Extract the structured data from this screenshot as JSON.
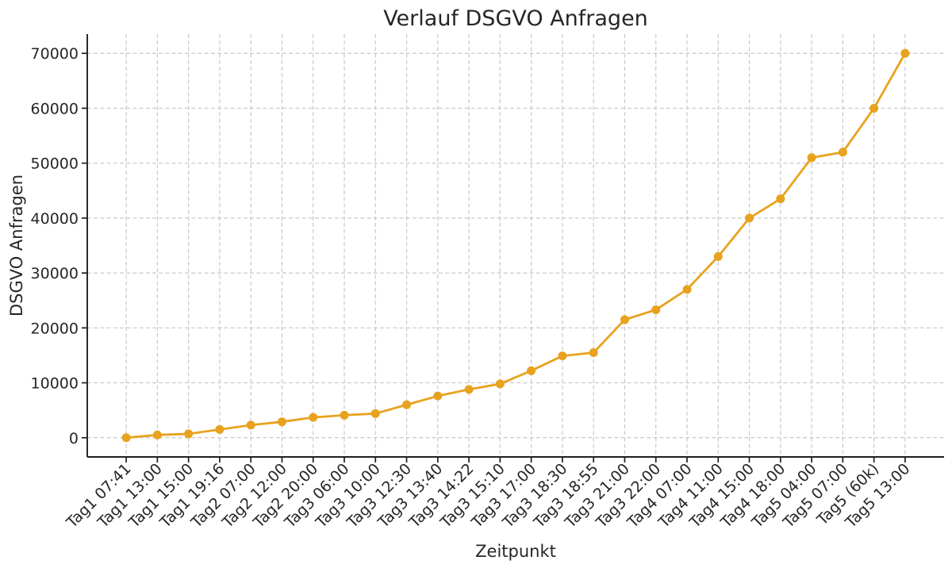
{
  "chart_data": {
    "type": "line",
    "title": "Verlauf DSGVO Anfragen",
    "xlabel": "Zeitpunkt",
    "ylabel": "DSGVO Anfragen",
    "categories": [
      "Tag1 07:41",
      "Tag1 13:00",
      "Tag1 15:00",
      "Tag1 19:16",
      "Tag2 07:00",
      "Tag2 12:00",
      "Tag2 20:00",
      "Tag3 06:00",
      "Tag3 10:00",
      "Tag3 12:30",
      "Tag3 13:40",
      "Tag3 14:22",
      "Tag3 15:10",
      "Tag3 17:00",
      "Tag3 18:30",
      "Tag3 18:55",
      "Tag3 21:00",
      "Tag3 22:00",
      "Tag4 07:00",
      "Tag4 11:00",
      "Tag4 15:00",
      "Tag4 18:00",
      "Tag5 04:00",
      "Tag5 07:00",
      "Tag5 (60k)",
      "Tag5 13:00"
    ],
    "series": [
      {
        "name": "DSGVO Anfragen",
        "values": [
          0,
          500,
          700,
          1500,
          2300,
          2900,
          3700,
          4100,
          4400,
          6000,
          7600,
          8800,
          9800,
          12200,
          14900,
          15500,
          21500,
          23300,
          27000,
          33000,
          40000,
          43500,
          51000,
          52000,
          60000,
          70000
        ]
      }
    ],
    "yticks": [
      0,
      10000,
      20000,
      30000,
      40000,
      50000,
      60000,
      70000
    ],
    "ylim": [
      -3500,
      73500
    ],
    "grid": "on",
    "grid_style": "dashed",
    "legend": "none",
    "marker": "circle",
    "x_tick_rotation_deg": 45,
    "colors": {
      "line": "#E8A21E",
      "grid": "#C8C8C8",
      "text": "#262626",
      "spine": "#1F1F1F",
      "background": "#FFFFFF"
    }
  }
}
